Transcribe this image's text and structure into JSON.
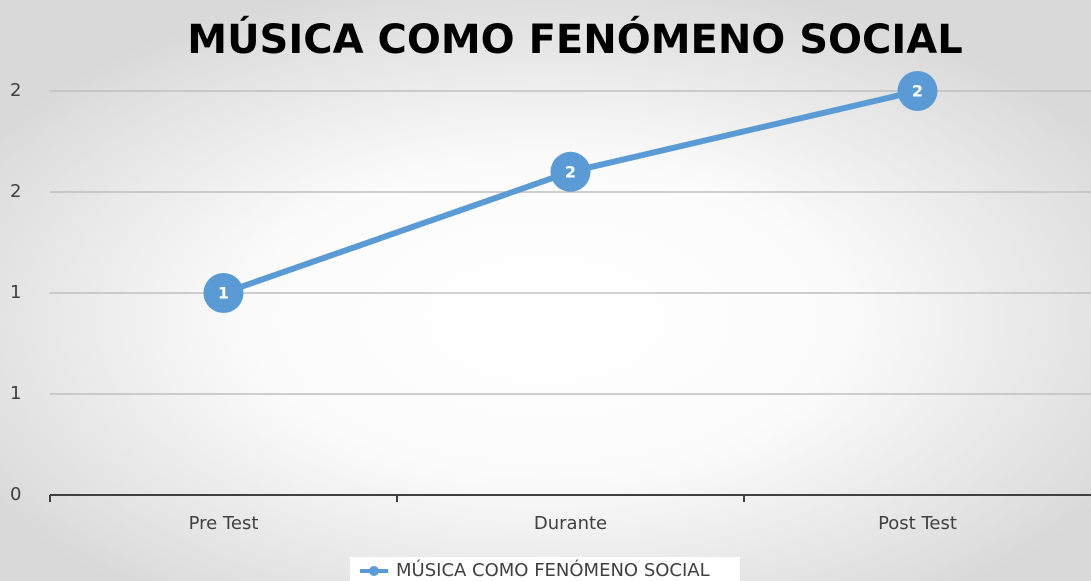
{
  "chart_data": {
    "type": "line",
    "title": "MÚSICA COMO FENÓMENO SOCIAL",
    "categories": [
      "Pre Test",
      "Durante",
      "Post Test"
    ],
    "series": [
      {
        "name": "MÚSICA COMO FENÓMENO SOCIAL",
        "color": "#5b9bd5",
        "values": [
          1,
          1.6,
          2
        ],
        "value_labels": [
          "1",
          "2",
          "2"
        ]
      }
    ],
    "ylim": [
      0,
      2
    ],
    "yticks": [
      0,
      {
        "value": 0.5,
        "label": "1"
      },
      1,
      {
        "value": 1.5,
        "label": "2"
      },
      2
    ],
    "grid": true,
    "legend": "bottom"
  }
}
